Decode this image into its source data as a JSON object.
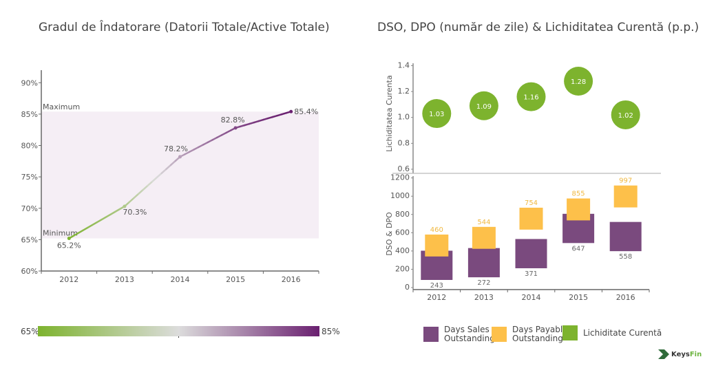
{
  "chart_data": [
    {
      "type": "line",
      "title": "Gradul de Îndatorare (Datorii Totale/Active Totale)",
      "categories": [
        "2012",
        "2013",
        "2014",
        "2015",
        "2016"
      ],
      "values": [
        65.2,
        70.3,
        78.2,
        82.8,
        85.4
      ],
      "data_labels": [
        "65.2%",
        "70.3%",
        "78.2%",
        "82.8%",
        "85.4%"
      ],
      "ylim": [
        60,
        92
      ],
      "yticks": [
        60,
        65,
        70,
        75,
        80,
        85,
        90
      ],
      "ytick_labels": [
        "60%",
        "65%",
        "70%",
        "75%",
        "80%",
        "85%",
        "90%"
      ],
      "band": {
        "min": 65.2,
        "max": 85.4,
        "min_label": "Minimum",
        "max_label": "Maximum"
      },
      "color_scale": {
        "min_label": "65%",
        "max_label": "85%",
        "colors": [
          "#7db32e",
          "#dcdcdc",
          "#6a2070"
        ]
      },
      "grid": false
    },
    {
      "type": "bar",
      "title": "DSO, DPO (număr de zile) & Lichiditatea Curentă (p.p.)",
      "categories": [
        "2012",
        "2013",
        "2014",
        "2015",
        "2016"
      ],
      "top_panel": {
        "type": "scatter",
        "ylabel": "Lichiditatea Curenta",
        "ylim": [
          0.6,
          1.45
        ],
        "yticks": [
          0.6,
          0.8,
          1.0,
          1.2,
          1.4
        ],
        "ytick_labels": [
          "0.6",
          "0.8",
          "1.0",
          "1.2",
          "1.4"
        ],
        "values": [
          1.03,
          1.09,
          1.16,
          1.28,
          1.02
        ],
        "labels": [
          "1.03",
          "1.09",
          "1.16",
          "1.28",
          "1.02"
        ]
      },
      "bottom_panel": {
        "ylabel": "DSO & DPO",
        "ylim": [
          0,
          1220
        ],
        "yticks": [
          0,
          200,
          400,
          600,
          800,
          1000,
          1200
        ],
        "ytick_labels": [
          "0",
          "200",
          "400",
          "600",
          "800",
          "1000",
          "1200"
        ],
        "series": [
          {
            "name": "Days Sales Outstanding",
            "values": [
              243,
              272,
              371,
              647,
              558
            ],
            "labels": [
              "243",
              "272",
              "371",
              "647",
              "558"
            ]
          },
          {
            "name": "Days Payable Outstanding",
            "values": [
              460,
              544,
              754,
              855,
              997
            ],
            "labels": [
              "460",
              "544",
              "754",
              "855",
              "997"
            ]
          }
        ]
      },
      "legend": [
        {
          "name": "Days Sales Outstanding",
          "line1": "Days Sales",
          "line2": "Outstanding",
          "color": "#7a4a7e"
        },
        {
          "name": "Days Payable Outstanding",
          "line1": "Days Payable",
          "line2": "Outstanding",
          "color": "#fdc04a"
        },
        {
          "name": "Lichiditate Curentă",
          "line1": "Lichiditate Curentă",
          "line2": "",
          "color": "#7db32e"
        }
      ],
      "legend_position": "bottom"
    }
  ],
  "colors": {
    "dso": "#7a4a7e",
    "dpo": "#fdc04a",
    "liquidity": "#7db32e",
    "band": "#f5eef5"
  },
  "brand": {
    "name_a": "Keys",
    "name_b": "Fin"
  }
}
